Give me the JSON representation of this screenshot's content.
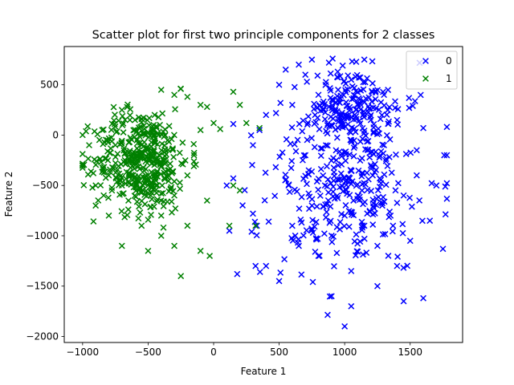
{
  "chart_data": {
    "type": "scatter",
    "title": "Scatter plot for first two principle components for 2 classes",
    "xlabel": "Feature 1",
    "ylabel": "Feature 2",
    "xlim": [
      -1140,
      1900
    ],
    "ylim": [
      -2060,
      880
    ],
    "xticks": [
      -1000,
      -500,
      0,
      500,
      1000,
      1500
    ],
    "yticks": [
      -2000,
      -1500,
      -1000,
      -500,
      0,
      500
    ],
    "tick_labels": {
      "x": [
        "−1000",
        "−500",
        "0",
        "500",
        "1000",
        "1500"
      ],
      "y": [
        "−2000",
        "−1500",
        "−1000",
        "−500",
        "0",
        "500"
      ]
    },
    "marker": "x",
    "grid": false,
    "legend_position": "top-right",
    "series": [
      {
        "name": "0",
        "color": "#0000ff",
        "cluster": {
          "center": [
            1000,
            -480
          ],
          "spread": [
            370,
            560
          ],
          "count": 560
        },
        "points": [
          [
            1000,
            200
          ],
          [
            1100,
            300
          ],
          [
            900,
            100
          ],
          [
            1200,
            150
          ],
          [
            800,
            400
          ],
          [
            950,
            450
          ],
          [
            1050,
            550
          ],
          [
            1300,
            400
          ],
          [
            700,
            600
          ],
          [
            650,
            700
          ],
          [
            1000,
            -1900
          ],
          [
            1450,
            -1650
          ],
          [
            1600,
            -1620
          ],
          [
            1780,
            -200
          ],
          [
            1760,
            -200
          ],
          [
            1750,
            -1130
          ],
          [
            1600,
            70
          ],
          [
            1520,
            290
          ],
          [
            1550,
            -150
          ],
          [
            1700,
            -500
          ],
          [
            1650,
            -850
          ],
          [
            1500,
            -1050
          ],
          [
            1400,
            -1300
          ],
          [
            1050,
            -1700
          ],
          [
            900,
            -1600
          ],
          [
            500,
            -1450
          ],
          [
            400,
            -1300
          ],
          [
            320,
            -1300
          ],
          [
            330,
            -900
          ],
          [
            300,
            -780
          ],
          [
            180,
            -1380
          ],
          [
            120,
            -950
          ],
          [
            100,
            -500
          ],
          [
            150,
            -430
          ],
          [
            300,
            -100
          ],
          [
            350,
            50
          ],
          [
            400,
            200
          ],
          [
            500,
            500
          ],
          [
            550,
            650
          ],
          [
            600,
            300
          ],
          [
            700,
            -200
          ],
          [
            750,
            750
          ],
          [
            880,
            720
          ],
          [
            1150,
            750
          ],
          [
            1400,
            150
          ],
          [
            1300,
            -100
          ],
          [
            1200,
            -300
          ],
          [
            1100,
            -600
          ],
          [
            1000,
            -800
          ],
          [
            900,
            -1000
          ],
          [
            800,
            -1200
          ],
          [
            650,
            -1100
          ],
          [
            600,
            -900
          ],
          [
            750,
            -700
          ],
          [
            850,
            -500
          ],
          [
            950,
            -300
          ],
          [
            1050,
            -50
          ],
          [
            1150,
            -900
          ],
          [
            1250,
            -1100
          ],
          [
            1350,
            -800
          ],
          [
            1450,
            -600
          ],
          [
            1550,
            -400
          ],
          [
            1250,
            -1500
          ],
          [
            1050,
            -1350
          ]
        ]
      },
      {
        "name": "1",
        "color": "#008000",
        "cluster": {
          "center": [
            -550,
            -250
          ],
          "spread": [
            240,
            340
          ],
          "count": 470
        },
        "points": [
          [
            -950,
            -100
          ],
          [
            -1000,
            -300
          ],
          [
            -900,
            -700
          ],
          [
            -700,
            -1100
          ],
          [
            -500,
            -1150
          ],
          [
            -250,
            -1400
          ],
          [
            -100,
            -1150
          ],
          [
            -30,
            -1200
          ],
          [
            -300,
            400
          ],
          [
            -400,
            450
          ],
          [
            -250,
            460
          ],
          [
            -200,
            380
          ],
          [
            -100,
            300
          ],
          [
            -50,
            280
          ],
          [
            0,
            120
          ],
          [
            50,
            60
          ],
          [
            150,
            430
          ],
          [
            200,
            300
          ],
          [
            250,
            120
          ],
          [
            350,
            70
          ],
          [
            320,
            -900
          ],
          [
            120,
            -900
          ],
          [
            150,
            -500
          ],
          [
            200,
            -550
          ],
          [
            -50,
            -650
          ],
          [
            -800,
            -400
          ],
          [
            -750,
            -100
          ],
          [
            -600,
            150
          ],
          [
            -450,
            200
          ],
          [
            -350,
            -50
          ],
          [
            -500,
            -500
          ],
          [
            -650,
            -650
          ],
          [
            -800,
            -800
          ],
          [
            -550,
            -900
          ],
          [
            -400,
            -800
          ],
          [
            -300,
            -600
          ],
          [
            -200,
            -400
          ],
          [
            -150,
            -200
          ],
          [
            -100,
            50
          ],
          [
            -700,
            250
          ],
          [
            -850,
            50
          ],
          [
            -900,
            -500
          ],
          [
            -600,
            -300
          ],
          [
            -450,
            -250
          ],
          [
            -550,
            -100
          ],
          [
            -350,
            -350
          ],
          [
            -700,
            -500
          ],
          [
            -400,
            -1000
          ],
          [
            -300,
            -1100
          ],
          [
            -200,
            -900
          ]
        ]
      }
    ]
  }
}
